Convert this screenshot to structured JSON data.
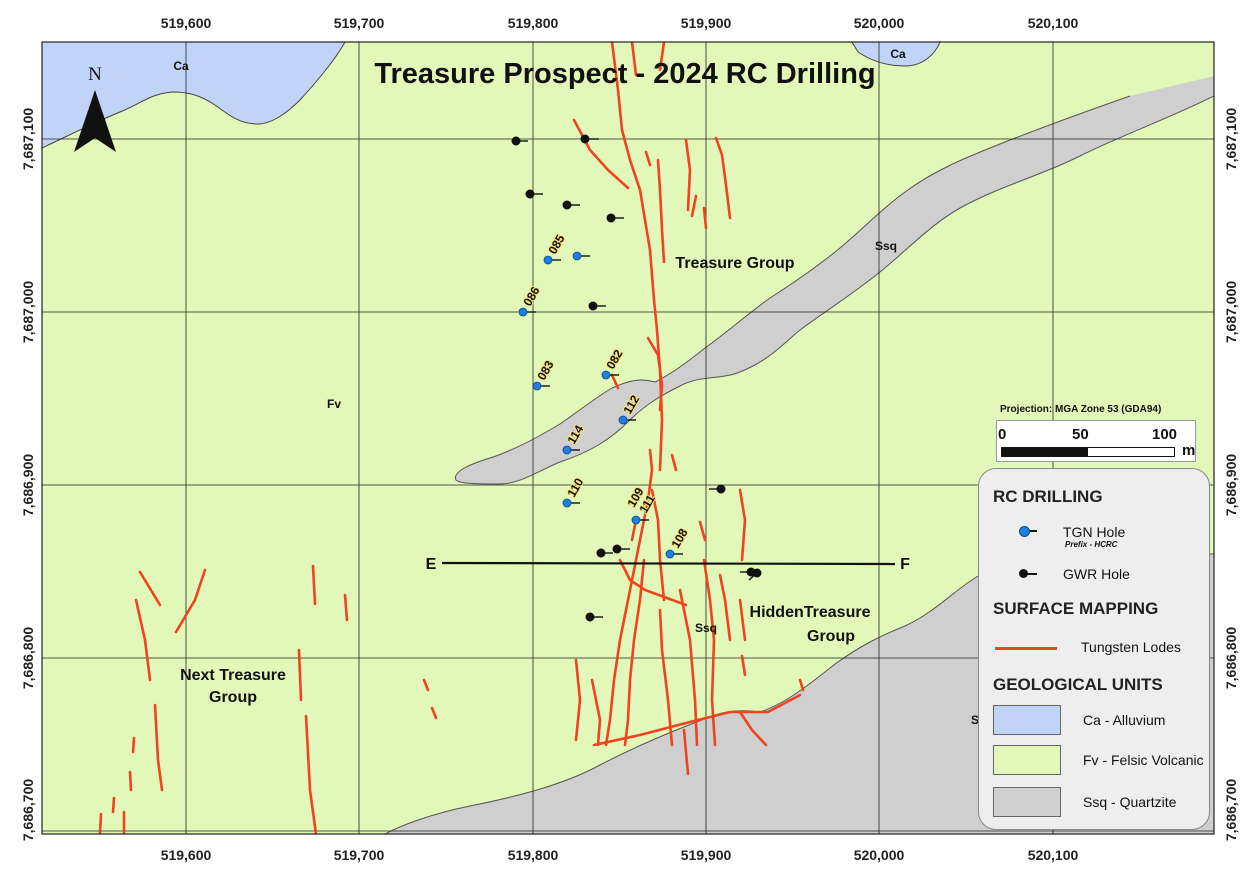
{
  "title": "Treasure Prospect - 2024 RC Drilling",
  "x_ticks": [
    "519,600",
    "519,700",
    "519,800",
    "519,900",
    "520,000",
    "520,100"
  ],
  "y_ticks": [
    "7,687,100",
    "7,687,000",
    "7,686,900",
    "7,686,800",
    "7,686,700"
  ],
  "north_label": "N",
  "unit_labels": {
    "ca_left": "Ca",
    "ca_right": "Ca",
    "fv": "Fv",
    "ssq_upper": "Ssq",
    "ssq_lower": "Ssq",
    "s_partial": "S"
  },
  "group_labels": {
    "treasure": "Treasure Group",
    "hidden_line1": "HiddenTreasure",
    "hidden_line2": "Group",
    "next_line1": "Next Treasure",
    "next_line2": "Group"
  },
  "tgn_hole_labels": [
    "085",
    "086",
    "083",
    "082",
    "112",
    "114",
    "110",
    "109",
    "111",
    "108"
  ],
  "section_line": {
    "start_label": "E",
    "end_label": "F"
  },
  "scale_bar": {
    "projection": "Projection: MGA Zone 53 (GDA94)",
    "ticks": [
      "0",
      "50",
      "100"
    ],
    "unit": "m"
  },
  "legend": {
    "rc_heading": "RC DRILLING",
    "tgn_label": "TGN Hole",
    "tgn_sub": "Prefix - HCRC",
    "gwr_label": "GWR Hole",
    "surface_heading": "SURFACE MAPPING",
    "lodes_label": "Tungsten Lodes",
    "geo_heading": "GEOLOGICAL UNITS",
    "ca_label": "Ca - Alluvium",
    "fv_label": "Fv - Felsic Volcanic",
    "ssq_label": "Ssq - Quartzite"
  },
  "colors": {
    "alluvium": "#c1d4f8",
    "felsic_volcanic": "#e2f8b8",
    "quartzite": "#cfcfcf",
    "lodes": "#f0431e",
    "tgn_hole": "#1e7fe0",
    "gwr_hole": "#111111"
  }
}
